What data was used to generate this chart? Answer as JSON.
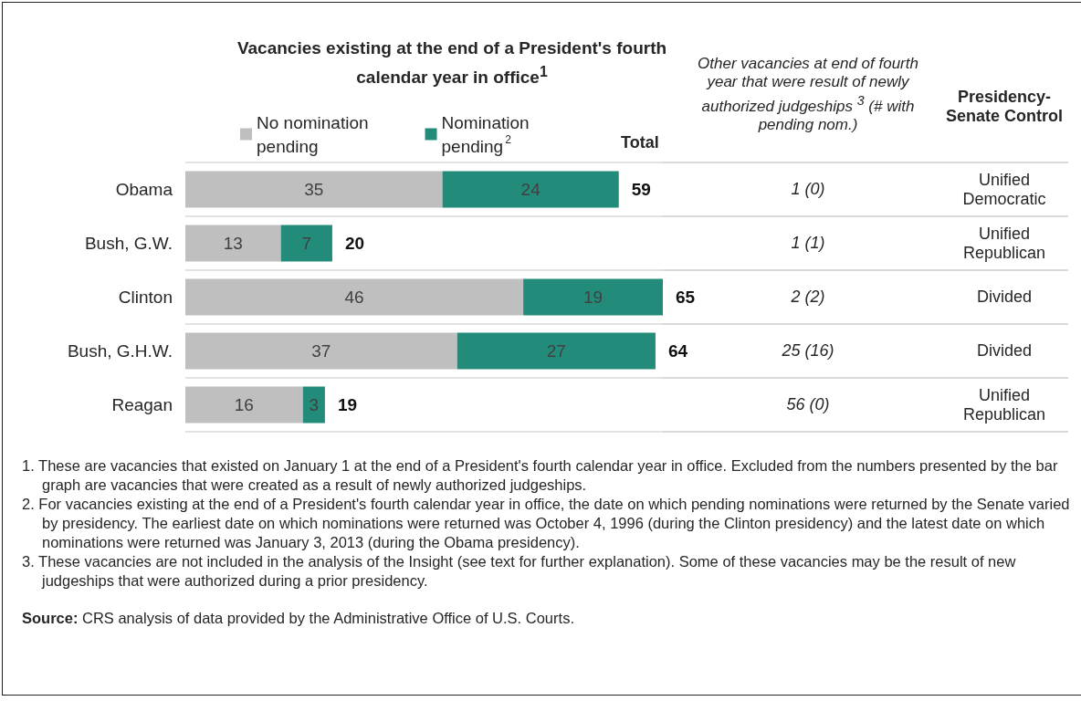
{
  "chart_data": {
    "type": "bar",
    "orientation": "horizontal",
    "stacked": true,
    "title": "Vacancies existing at the end of a President's fourth calendar year in office$^{1}$",
    "categories": [
      "Obama",
      "Bush, G.W.",
      "Clinton",
      "Bush, G.H.W.",
      "Reagan"
    ],
    "series": [
      {
        "name": "No nomination pending",
        "color": "#bfbfbf",
        "values": [
          35,
          13,
          46,
          37,
          16
        ]
      },
      {
        "name": "Nomination pending$^{2}$",
        "color": "#238b7a",
        "values": [
          24,
          7,
          19,
          27,
          3
        ]
      }
    ],
    "data_labels": true,
    "totals": [
      "59",
      "20",
      "65",
      "64",
      "19"
    ],
    "legend": "top",
    "grid": "y",
    "annotations": [
      "Total",
      "Other vacancies at end of fourth year that were result of newly authorized judgeships $^{3}$ (# with pending nom.)",
      "1 (0)",
      "1 (1)",
      "2 (2)",
      "25 (16)",
      "56 (0)",
      "Presidency-Senate Control",
      "Unified Democratic",
      "Unified Republican",
      "Divided",
      "Divided",
      "Unified Republican",
      "1. These are vacancies that existed on January 1 at the end of a President's fourth calendar year in office. Excluded from the numbers presented by the bar graph are vacancies that were created as a result of newly authorized judgeships.",
      "2. For vacancies existing at the end of a President's fourth calendar year in office, the date on which pending nominations were returned by the Senate varied by presidency. The earliest date on which nominations were returned was October 4, 1996 (during the Clinton presidency) and the latest date on which nominations were returned was January 3, 2013 (during the Obama presidency).",
      "3. These vacancies are not included in the analysis of the Insight (see text for further explanation). Some of these vacancies may be the result of new judgeships that were authorized during a prior presidency.",
      "Source: CRS analysis of data provided by the Administrative Office of U.S. Courts."
    ]
  }
}
